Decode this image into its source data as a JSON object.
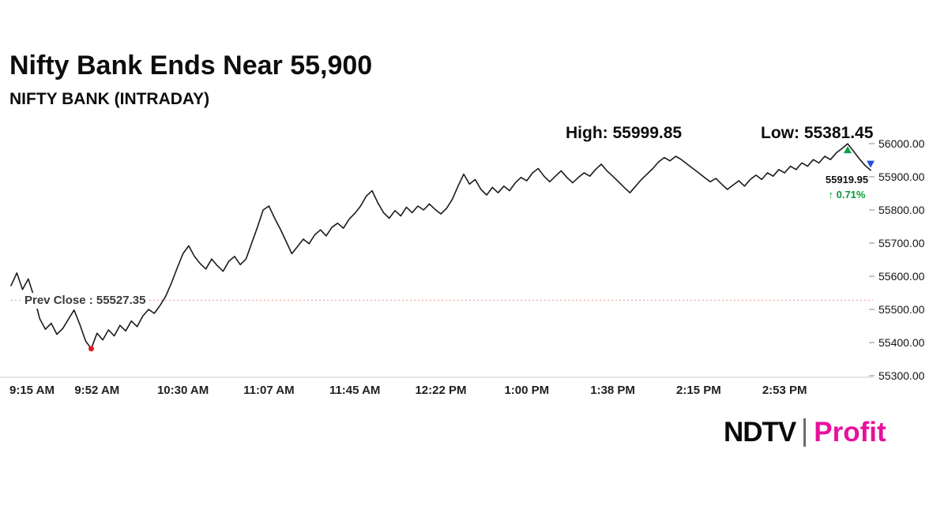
{
  "header": {
    "title": "Nifty Bank Ends Near 55,900",
    "subtitle": "NIFTY BANK (INTRADAY)"
  },
  "stats": {
    "high_label": "High: 55999.85",
    "low_label": "Low: 55381.45",
    "last_price": "55919.95",
    "change": "↑ 0.71%",
    "prev_close_label": "Prev Close : 55527.35"
  },
  "logo": {
    "ndtv": "NDTV",
    "separator": "|",
    "profit": "Profit"
  },
  "colors": {
    "price_line": "#1b1b1b",
    "prev_close_line": "#f0a0a0",
    "gain_green": "#0a9b3c",
    "low_dot_red": "#e51b1b",
    "high_marker_green": "#0ca04a",
    "last_marker_blue": "#2451d8",
    "profit_pink": "#e6119c",
    "axis_gray": "#c8c8c8"
  },
  "chart_data": {
    "type": "line",
    "title": "Nifty Bank Ends Near 55,900",
    "subtitle": "NIFTY BANK (INTRADAY)",
    "x_tick_labels": [
      "9:15 AM",
      "9:52 AM",
      "10:30 AM",
      "11:07 AM",
      "11:45 AM",
      "12:22 PM",
      "1:00 PM",
      "1:38 PM",
      "2:15 PM",
      "2:53 PM"
    ],
    "x_tick_minutes": [
      0,
      37.5,
      75,
      112.5,
      150,
      187.5,
      225,
      262.5,
      300,
      337.5
    ],
    "y_tick_labels": [
      "56000.00",
      "55900.00",
      "55800.00",
      "55700.00",
      "55600.00",
      "55500.00",
      "55400.00",
      "55300.00"
    ],
    "y_tick_values": [
      56000,
      55900,
      55800,
      55700,
      55600,
      55500,
      55400,
      55300
    ],
    "ylim": [
      55300,
      56000
    ],
    "grid": false,
    "session_minutes": 375,
    "x_start_minute": 0,
    "x_step_minutes": 2.5,
    "prev_close": 55527.35,
    "high": 55999.85,
    "low": 55381.45,
    "last": 55919.95,
    "change_pct": 0.71,
    "low_marker_minute": 35,
    "high_marker_minute": 365,
    "last_marker_minute": 375,
    "series": [
      {
        "name": "NIFTY BANK",
        "values": [
          55572,
          55610,
          55560,
          55592,
          55538,
          55472,
          55440,
          55458,
          55425,
          55442,
          55470,
          55498,
          55455,
          55405,
          55381.45,
          55428,
          55408,
          55438,
          55420,
          55452,
          55435,
          55465,
          55448,
          55480,
          55500,
          55488,
          55512,
          55540,
          55580,
          55625,
          55668,
          55692,
          55660,
          55638,
          55622,
          55652,
          55632,
          55615,
          55645,
          55660,
          55635,
          55652,
          55700,
          55748,
          55800,
          55812,
          55775,
          55742,
          55705,
          55668,
          55690,
          55712,
          55698,
          55725,
          55740,
          55722,
          55748,
          55760,
          55745,
          55772,
          55790,
          55812,
          55842,
          55858,
          55822,
          55792,
          55775,
          55798,
          55782,
          55808,
          55792,
          55812,
          55800,
          55818,
          55802,
          55788,
          55805,
          55832,
          55872,
          55908,
          55878,
          55892,
          55862,
          55845,
          55868,
          55852,
          55872,
          55858,
          55882,
          55898,
          55888,
          55912,
          55925,
          55902,
          55885,
          55902,
          55918,
          55898,
          55882,
          55898,
          55912,
          55902,
          55922,
          55938,
          55918,
          55902,
          55885,
          55868,
          55852,
          55872,
          55892,
          55908,
          55925,
          55945,
          55958,
          55948,
          55962,
          55952,
          55938,
          55925,
          55912,
          55898,
          55885,
          55895,
          55878,
          55862,
          55875,
          55888,
          55872,
          55892,
          55905,
          55892,
          55912,
          55902,
          55922,
          55912,
          55932,
          55922,
          55942,
          55932,
          55952,
          55942,
          55962,
          55952,
          55972,
          55985,
          55999.85,
          55978,
          55955,
          55935,
          55919.95
        ]
      }
    ]
  }
}
